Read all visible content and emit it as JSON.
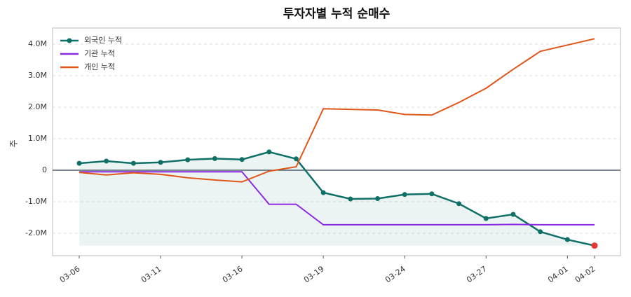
{
  "chart_data": {
    "type": "line",
    "title": "투자자별 누적 순매수",
    "y_label": "주",
    "categories": [
      "03-06",
      null,
      null,
      "03-11",
      null,
      null,
      "03-16",
      null,
      null,
      "03-19",
      null,
      null,
      "03-24",
      null,
      null,
      "03-27",
      null,
      null,
      "04-01",
      "04-02"
    ],
    "series": [
      {
        "name": "외국인 누적",
        "color": "#0f7068",
        "values": [
          220000,
          290000,
          220000,
          250000,
          330000,
          370000,
          340000,
          580000,
          360000,
          -710000,
          -910000,
          -900000,
          -770000,
          -750000,
          -1060000,
          -1530000,
          -1400000,
          -1950000,
          -2200000,
          -2390000
        ]
      },
      {
        "name": "기관 누적",
        "color": "#8a2be2",
        "values": [
          -50000,
          -50000,
          -50000,
          -50000,
          -50000,
          -50000,
          -50000,
          -1080000,
          -1080000,
          -1730000,
          -1730000,
          -1730000,
          -1730000,
          -1730000,
          -1730000,
          -1730000,
          -1720000,
          -1730000,
          -1730000,
          -1730000
        ]
      },
      {
        "name": "개인 누적",
        "color": "#e0561a",
        "values": [
          -70000,
          -150000,
          -80000,
          -130000,
          -240000,
          -310000,
          -370000,
          -30000,
          110000,
          1950000,
          1930000,
          1910000,
          1770000,
          1750000,
          2150000,
          2600000,
          3200000,
          3770000,
          3970000,
          4170000
        ]
      }
    ],
    "ylim": [
      -2710000,
      4510000
    ],
    "yticks": [
      {
        "value": -2000000,
        "label": "-2.0M"
      },
      {
        "value": -1000000,
        "label": "-1.0M"
      },
      0,
      {
        "value": 1000000,
        "label": "1.0M"
      },
      {
        "value": 2000000,
        "label": "2.0M"
      },
      {
        "value": 3000000,
        "label": "3.0M"
      },
      {
        "value": 4000000,
        "label": "4.0M"
      }
    ],
    "grid": true,
    "legend": "upper-left"
  }
}
